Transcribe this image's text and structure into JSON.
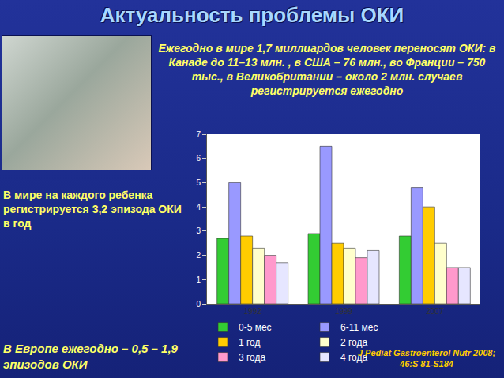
{
  "chart_data": {
    "type": "bar",
    "title": "Актуальность проблемы ОКИ",
    "annotations": [
      "Ежегодно в мире 1,7 миллиардов человек переносят ОКИ: в Канаде до 11–13 млн. , в США – 76 млн., во Франции – 750 тыс., в Великобритании – около 2 млн. случаев регистрируется ежегодно",
      "В мире на каждого ребенка регистрируется 3,2 эпизода ОКИ в год",
      "В Европе ежегодно – 0,5 – 1,9 эпизодов ОКИ",
      "J Pediat Gastroenterol Nutr 2008; 46:S 81-S184"
    ],
    "categories": [
      "1992",
      "1999",
      "2007"
    ],
    "series": [
      {
        "name": "0-5 мес",
        "color": "#33cc33",
        "values": [
          2.7,
          2.9,
          2.8
        ]
      },
      {
        "name": "6-11 мес",
        "color": "#9999ff",
        "values": [
          5.0,
          6.5,
          4.8
        ]
      },
      {
        "name": "1 год",
        "color": "#ffcc00",
        "values": [
          2.8,
          2.5,
          4.0
        ]
      },
      {
        "name": "2 года",
        "color": "#ffffcc",
        "values": [
          2.3,
          2.3,
          2.5
        ]
      },
      {
        "name": "3 года",
        "color": "#ff99cc",
        "values": [
          2.0,
          1.9,
          1.5
        ]
      },
      {
        "name": "4 года",
        "color": "#e6e6ff",
        "values": [
          1.7,
          2.2,
          1.5
        ]
      }
    ],
    "ylim": [
      0,
      7
    ],
    "yticks": [
      0,
      1,
      2,
      3,
      4,
      5,
      6,
      7
    ],
    "grid": false,
    "legend": "bottom"
  }
}
